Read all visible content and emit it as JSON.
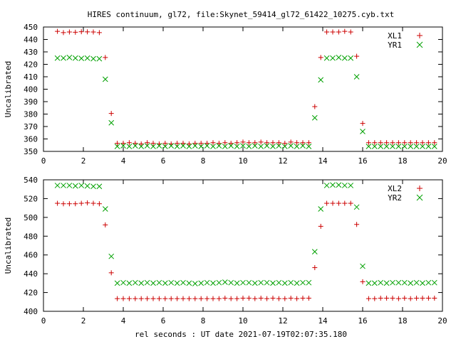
{
  "title": "HIRES continuum, gl72, file:Skynet_59414_gl72_61422_10275.cyb.txt",
  "xlabel": "rel seconds : UT date 2021-07-19T02:07:35.180",
  "colors": {
    "plus_series": "#cc0000",
    "cross_series": "#00a000",
    "axis": "#000000"
  },
  "chart_data": [
    {
      "type": "scatter",
      "title": "HIRES continuum, gl72, file:Skynet_59414_gl72_61422_10275.cyb.txt",
      "xlabel": "",
      "ylabel": "Uncalibrated",
      "xlim": [
        0,
        20
      ],
      "ylim": [
        350,
        450
      ],
      "xticks": [
        0,
        2,
        4,
        6,
        8,
        10,
        12,
        14,
        16,
        18,
        20
      ],
      "yticks": [
        350,
        360,
        370,
        380,
        390,
        400,
        410,
        420,
        430,
        440,
        450
      ],
      "grid": false,
      "legend_position": "top-right",
      "x": [
        0.7,
        1.0,
        1.3,
        1.6,
        1.9,
        2.2,
        2.5,
        2.8,
        3.1,
        3.4,
        3.7,
        4.0,
        4.3,
        4.6,
        4.9,
        5.2,
        5.5,
        5.8,
        6.1,
        6.4,
        6.7,
        7.0,
        7.3,
        7.6,
        7.9,
        8.2,
        8.5,
        8.8,
        9.1,
        9.4,
        9.7,
        10.0,
        10.3,
        10.6,
        10.9,
        11.2,
        11.5,
        11.8,
        12.1,
        12.4,
        12.7,
        13.0,
        13.3,
        13.6,
        13.9,
        14.2,
        14.5,
        14.8,
        15.1,
        15.4,
        15.7,
        16.0,
        16.3,
        16.6,
        16.9,
        17.2,
        17.5,
        17.8,
        18.1,
        18.4,
        18.7,
        19.0,
        19.3,
        19.6
      ],
      "series": [
        {
          "name": "XL1",
          "marker": "plus",
          "values": [
            446.5,
            445.5,
            446.0,
            445.8,
            446.2,
            446.1,
            446.0,
            445.5,
            425.5,
            380.5,
            356.5,
            356.5,
            357.0,
            356.5,
            356.0,
            357.0,
            356.5,
            356.0,
            356.5,
            356.0,
            356.5,
            356.5,
            356.0,
            356.5,
            356.5,
            356.5,
            357.0,
            356.5,
            357.0,
            356.5,
            357.0,
            357.5,
            357.0,
            357.0,
            357.5,
            357.0,
            357.0,
            357.0,
            356.5,
            357.5,
            357.0,
            357.0,
            357.0,
            386.0,
            425.5,
            446.0,
            446.0,
            446.0,
            446.5,
            446.0,
            426.5,
            372.5,
            357.0,
            357.0,
            357.0,
            357.0,
            357.0,
            357.0,
            357.0,
            357.0,
            357.0,
            357.0,
            357.0,
            357.0
          ]
        },
        {
          "name": "YR1",
          "marker": "cross",
          "values": [
            425.0,
            425.0,
            425.5,
            425.0,
            424.8,
            425.0,
            424.5,
            424.5,
            408.0,
            373.0,
            354.0,
            354.5,
            354.0,
            354.5,
            354.0,
            354.5,
            354.0,
            354.5,
            354.0,
            354.5,
            354.0,
            354.5,
            354.0,
            354.5,
            354.0,
            354.5,
            354.0,
            354.5,
            354.0,
            354.5,
            354.0,
            354.5,
            354.0,
            354.5,
            354.0,
            354.5,
            354.0,
            354.5,
            354.0,
            354.5,
            354.0,
            354.5,
            354.0,
            377.0,
            407.5,
            425.0,
            425.0,
            425.5,
            425.0,
            425.0,
            410.0,
            366.0,
            354.0,
            354.0,
            354.0,
            354.0,
            354.0,
            354.0,
            354.0,
            354.0,
            354.0,
            354.0,
            354.0,
            354.0
          ]
        }
      ]
    },
    {
      "type": "scatter",
      "xlabel": "rel seconds : UT date 2021-07-19T02:07:35.180",
      "ylabel": "Uncalibrated",
      "xlim": [
        0,
        20
      ],
      "ylim": [
        400,
        540
      ],
      "xticks": [
        0,
        2,
        4,
        6,
        8,
        10,
        12,
        14,
        16,
        18,
        20
      ],
      "yticks": [
        400,
        420,
        440,
        460,
        480,
        500,
        520,
        540
      ],
      "grid": false,
      "legend_position": "top-right",
      "x": [
        0.7,
        1.0,
        1.3,
        1.6,
        1.9,
        2.2,
        2.5,
        2.8,
        3.1,
        3.4,
        3.7,
        4.0,
        4.3,
        4.6,
        4.9,
        5.2,
        5.5,
        5.8,
        6.1,
        6.4,
        6.7,
        7.0,
        7.3,
        7.6,
        7.9,
        8.2,
        8.5,
        8.8,
        9.1,
        9.4,
        9.7,
        10.0,
        10.3,
        10.6,
        10.9,
        11.2,
        11.5,
        11.8,
        12.1,
        12.4,
        12.7,
        13.0,
        13.3,
        13.6,
        13.9,
        14.2,
        14.5,
        14.8,
        15.1,
        15.4,
        15.7,
        16.0,
        16.3,
        16.6,
        16.9,
        17.2,
        17.5,
        17.8,
        18.1,
        18.4,
        18.7,
        19.0,
        19.3,
        19.6
      ],
      "series": [
        {
          "name": "XL2",
          "marker": "plus",
          "values": [
            515.0,
            514.5,
            514.5,
            514.5,
            515.0,
            515.5,
            515.0,
            514.5,
            492.0,
            441.0,
            413.5,
            413.5,
            413.5,
            413.5,
            413.5,
            413.5,
            413.5,
            413.5,
            413.5,
            413.5,
            413.5,
            413.5,
            413.5,
            413.5,
            413.5,
            413.5,
            413.5,
            413.5,
            414.0,
            413.5,
            413.5,
            414.0,
            414.0,
            413.5,
            414.0,
            413.5,
            414.0,
            413.5,
            413.5,
            414.0,
            413.5,
            414.0,
            414.0,
            446.5,
            490.5,
            515.0,
            515.0,
            515.0,
            515.0,
            515.0,
            492.5,
            431.5,
            413.5,
            413.5,
            414.0,
            414.0,
            414.0,
            413.5,
            414.0,
            413.5,
            414.0,
            414.0,
            414.0,
            414.0
          ]
        },
        {
          "name": "YR2",
          "marker": "cross",
          "values": [
            534.0,
            534.0,
            534.0,
            533.5,
            534.0,
            533.5,
            533.0,
            533.0,
            509.0,
            458.5,
            430.0,
            430.5,
            430.0,
            430.5,
            430.0,
            430.5,
            430.0,
            430.5,
            430.0,
            430.5,
            430.0,
            430.5,
            430.0,
            429.5,
            430.0,
            430.5,
            430.0,
            430.5,
            431.0,
            430.5,
            430.0,
            430.5,
            430.5,
            430.0,
            430.5,
            430.5,
            430.0,
            430.5,
            430.0,
            430.5,
            430.0,
            430.5,
            430.5,
            463.5,
            509.0,
            534.0,
            534.5,
            534.5,
            534.0,
            534.0,
            511.0,
            448.0,
            430.0,
            430.0,
            430.5,
            430.0,
            430.5,
            430.5,
            430.5,
            430.0,
            430.5,
            430.0,
            430.5,
            430.5
          ]
        }
      ]
    }
  ]
}
